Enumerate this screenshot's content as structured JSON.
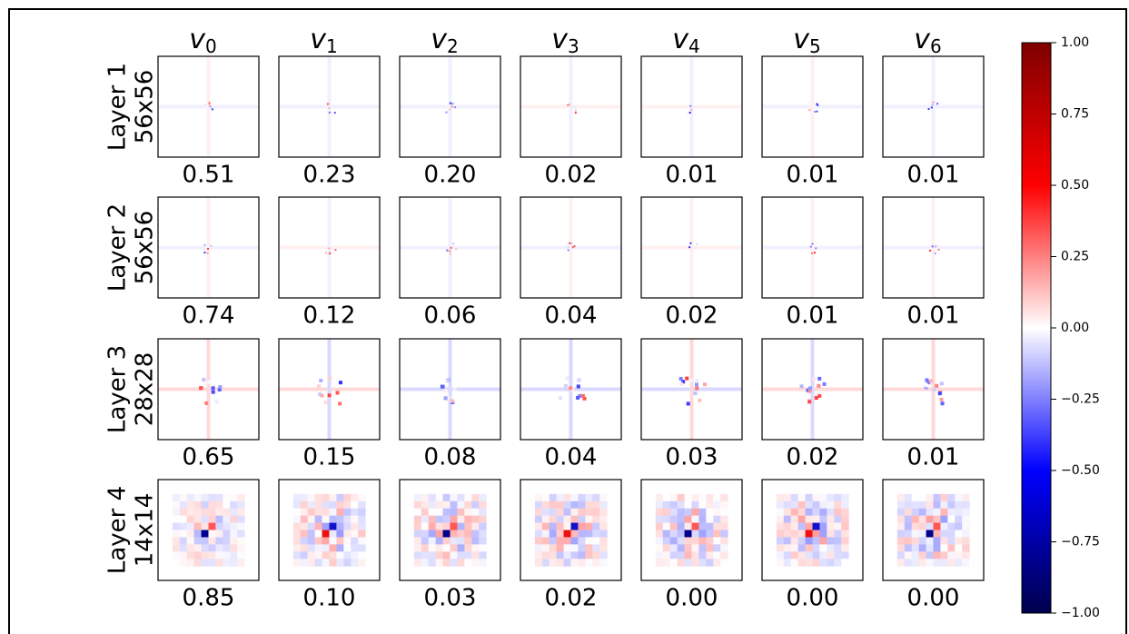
{
  "column_labels": [
    {
      "base": "v",
      "sub": "0"
    },
    {
      "base": "v",
      "sub": "1"
    },
    {
      "base": "v",
      "sub": "2"
    },
    {
      "base": "v",
      "sub": "3"
    },
    {
      "base": "v",
      "sub": "4"
    },
    {
      "base": "v",
      "sub": "5"
    },
    {
      "base": "v",
      "sub": "6"
    }
  ],
  "rows": [
    {
      "name": "Layer 1",
      "size": "56x56",
      "values": [
        "0.51",
        "0.23",
        "0.20",
        "0.02",
        "0.01",
        "0.01",
        "0.01"
      ]
    },
    {
      "name": "Layer 2",
      "size": "56x56",
      "values": [
        "0.74",
        "0.12",
        "0.06",
        "0.04",
        "0.02",
        "0.01",
        "0.01"
      ]
    },
    {
      "name": "Layer 3",
      "size": "28x28",
      "values": [
        "0.65",
        "0.15",
        "0.08",
        "0.04",
        "0.03",
        "0.02",
        "0.01"
      ]
    },
    {
      "name": "Layer 4",
      "size": "14x14",
      "values": [
        "0.85",
        "0.10",
        "0.03",
        "0.02",
        "0.00",
        "0.00",
        "0.00"
      ]
    }
  ],
  "colorbar": {
    "range": [
      -1,
      1
    ],
    "ticks": [
      {
        "value": 1,
        "label": "1.00"
      },
      {
        "value": 0.75,
        "label": "0.75"
      },
      {
        "value": 0.5,
        "label": "0.50"
      },
      {
        "value": 0.25,
        "label": "0.25"
      },
      {
        "value": 0,
        "label": "0.00"
      },
      {
        "value": -0.25,
        "label": "−0.25"
      },
      {
        "value": -0.5,
        "label": "−0.50"
      },
      {
        "value": -0.75,
        "label": "−0.75"
      },
      {
        "value": -1,
        "label": "−1.00"
      }
    ]
  }
}
